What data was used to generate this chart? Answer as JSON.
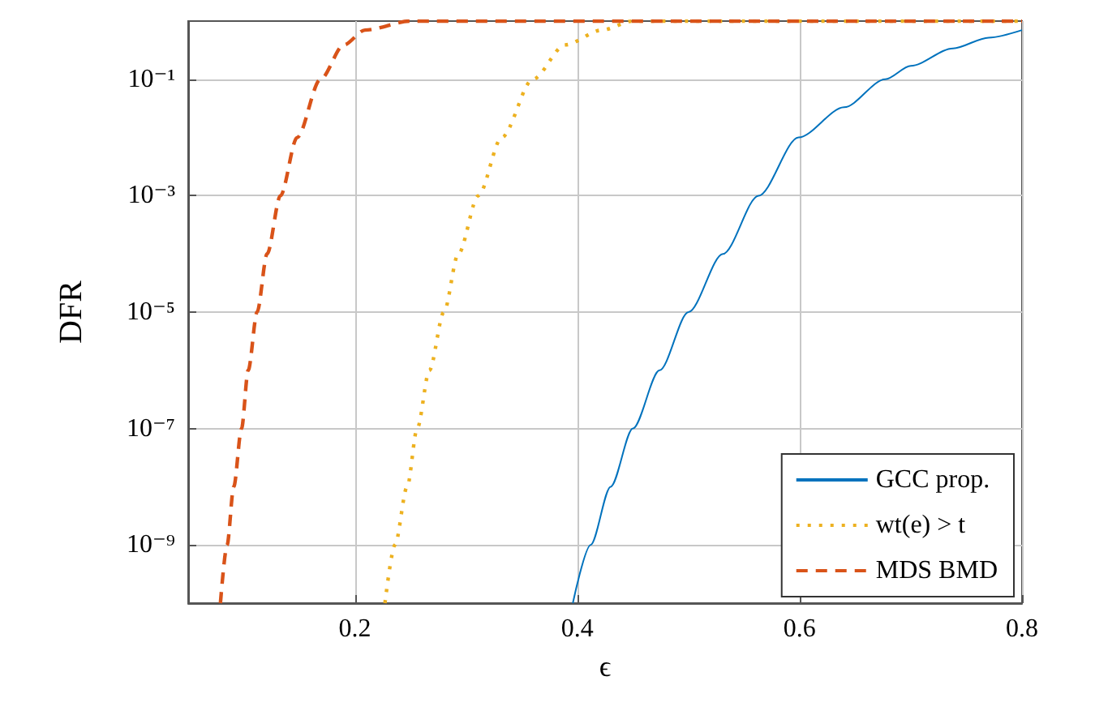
{
  "chart_data": {
    "type": "line",
    "xlabel": "ϵ",
    "ylabel": "DFR",
    "xlim": [
      0.05,
      0.8
    ],
    "xticks": [
      0.2,
      0.4,
      0.6,
      0.8
    ],
    "ylim": [
      1e-10,
      1
    ],
    "yticks": [
      {
        "value": 1e-09,
        "label": "10⁻⁹"
      },
      {
        "value": 1e-07,
        "label": "10⁻⁷"
      },
      {
        "value": 1e-05,
        "label": "10⁻⁵"
      },
      {
        "value": 0.001,
        "label": "10⁻³"
      },
      {
        "value": 0.1,
        "label": "10⁻¹"
      }
    ],
    "log": "y",
    "grid": true,
    "legend": "bottom right",
    "marker": "none",
    "series": [
      {
        "name": "GCC prop.",
        "color": "#0072bd",
        "line_style": "solid",
        "x": [
          0.396,
          0.412,
          0.43,
          0.45,
          0.474,
          0.5,
          0.531,
          0.563,
          0.599,
          0.64,
          0.677,
          0.7,
          0.738,
          0.77,
          0.8
        ],
        "values": [
          1e-10,
          1e-09,
          1e-08,
          1e-07,
          1e-06,
          1e-05,
          0.0001,
          0.001,
          0.01,
          0.033,
          0.1,
          0.17,
          0.34,
          0.52,
          0.7
        ]
      },
      {
        "name": "wt(e) > t",
        "color": "#edb120",
        "line_style": "dotted",
        "x": [
          0.227,
          0.236,
          0.247,
          0.256,
          0.267,
          0.28,
          0.293,
          0.311,
          0.332,
          0.36,
          0.389,
          0.422,
          0.45,
          0.8
        ],
        "values": [
          1e-10,
          1e-09,
          1e-08,
          1e-07,
          1e-06,
          1e-05,
          0.0001,
          0.001,
          0.01,
          0.1,
          0.39,
          0.7,
          1,
          1
        ]
      },
      {
        "name": "MDS BMD",
        "color": "#d95319",
        "line_style": "dashed",
        "x": [
          0.079,
          0.085,
          0.091,
          0.098,
          0.104,
          0.112,
          0.121,
          0.133,
          0.148,
          0.169,
          0.19,
          0.209,
          0.25,
          0.8
        ],
        "values": [
          1e-10,
          1e-09,
          1e-08,
          1e-07,
          1e-06,
          1e-05,
          0.0001,
          0.001,
          0.01,
          0.1,
          0.39,
          0.7,
          1,
          1
        ]
      }
    ]
  }
}
